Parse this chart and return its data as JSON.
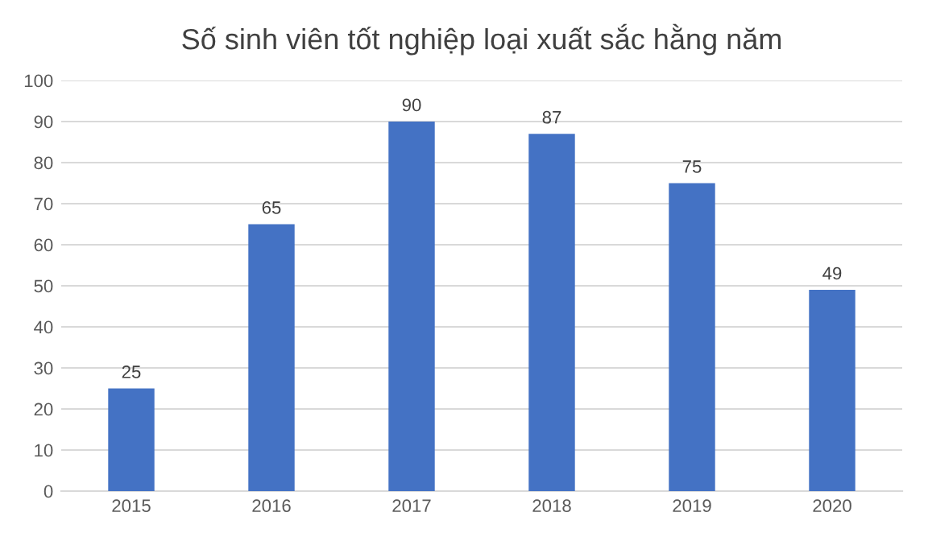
{
  "chart_data": {
    "type": "bar",
    "title": "Số sinh viên tốt nghiệp loại xuất sắc hằng năm",
    "categories": [
      "2015",
      "2016",
      "2017",
      "2018",
      "2019",
      "2020"
    ],
    "values": [
      25,
      65,
      90,
      87,
      75,
      49
    ],
    "color": "#4472c4",
    "ylim": [
      0,
      100
    ],
    "yticks": [
      0,
      10,
      20,
      30,
      40,
      50,
      60,
      70,
      80,
      90,
      100
    ],
    "grid": "y",
    "data_labels": true
  }
}
